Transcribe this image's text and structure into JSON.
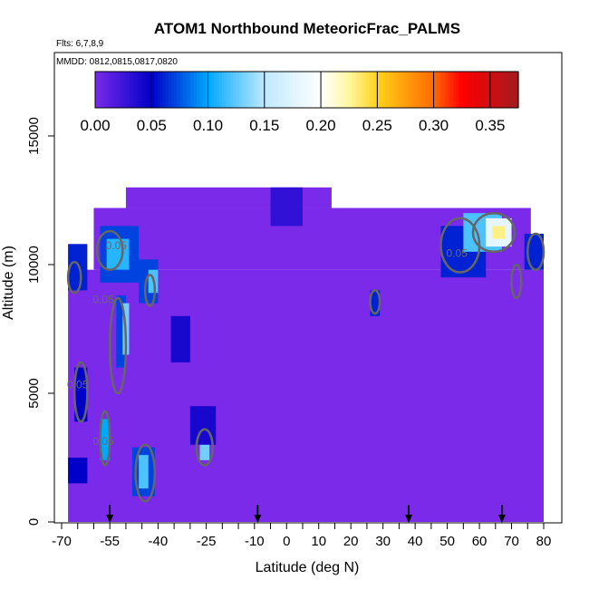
{
  "chart_data": {
    "type": "heatmap",
    "title": "ATOM1 Northbound MeteoricFrac_PALMS",
    "flights_note": "Flts: 6,7,8,9",
    "dates_note": "MMDD: 0812,0815,0817,0820",
    "xlabel": "Latitude (deg N)",
    "ylabel": "Altitude (m)",
    "xlim": [
      -70,
      80
    ],
    "ylim": [
      0,
      17000
    ],
    "x_ticks": [
      "-70",
      "-55",
      "-40",
      "-25",
      "-10",
      "0",
      "10",
      "20",
      "30",
      "40",
      "50",
      "60",
      "70",
      "80"
    ],
    "x_tick_values": [
      -70,
      -55,
      -40,
      -25,
      -10,
      0,
      10,
      20,
      30,
      40,
      50,
      60,
      70,
      80
    ],
    "y_ticks": [
      "0",
      "5000",
      "10000",
      "15000"
    ],
    "y_tick_values": [
      0,
      5000,
      10000,
      15000
    ],
    "colorbar": {
      "ticks": [
        "0.00",
        "0.05",
        "0.10",
        "0.15",
        "0.20",
        "0.25",
        "0.30",
        "0.35"
      ],
      "tick_values": [
        0,
        0.05,
        0.1,
        0.15,
        0.2,
        0.25,
        0.3,
        0.35
      ],
      "range": [
        0,
        0.375
      ],
      "stops": [
        {
          "v": 0.0,
          "color": "#7a2ae8"
        },
        {
          "v": 0.05,
          "color": "#0000c8"
        },
        {
          "v": 0.1,
          "color": "#00a8ff"
        },
        {
          "v": 0.15,
          "color": "#bfe8ff"
        },
        {
          "v": 0.2,
          "color": "#ffffff"
        },
        {
          "v": 0.225,
          "color": "#fff7a0"
        },
        {
          "v": 0.25,
          "color": "#ffd21a"
        },
        {
          "v": 0.3,
          "color": "#ff6a00"
        },
        {
          "v": 0.325,
          "color": "#ff0000"
        },
        {
          "v": 0.375,
          "color": "#a01c20"
        }
      ]
    },
    "background_value": 0.0,
    "coverage": [
      {
        "lat": [
          -68,
          80
        ],
        "alt": [
          0,
          9800
        ]
      },
      {
        "lat": [
          -60,
          76
        ],
        "alt": [
          9800,
          12200
        ]
      },
      {
        "lat": [
          -50,
          14
        ],
        "alt": [
          12200,
          13000
        ]
      }
    ],
    "patches": [
      {
        "lat": [
          -58,
          -46
        ],
        "alt": [
          9300,
          11500
        ],
        "value": 0.07
      },
      {
        "lat": [
          -56,
          -49
        ],
        "alt": [
          9800,
          11000
        ],
        "value": 0.11
      },
      {
        "lat": [
          -68,
          -62
        ],
        "alt": [
          9000,
          10800
        ],
        "value": 0.06
      },
      {
        "lat": [
          -53,
          -50
        ],
        "alt": [
          6000,
          8800
        ],
        "value": 0.07
      },
      {
        "lat": [
          -51,
          -49
        ],
        "alt": [
          6500,
          8500
        ],
        "value": 0.13
      },
      {
        "lat": [
          -46,
          -40
        ],
        "alt": [
          8500,
          10200
        ],
        "value": 0.07
      },
      {
        "lat": [
          -43,
          -40
        ],
        "alt": [
          8900,
          9800
        ],
        "value": 0.12
      },
      {
        "lat": [
          -66,
          -62
        ],
        "alt": [
          3900,
          6000
        ],
        "value": 0.05
      },
      {
        "lat": [
          -58,
          -55
        ],
        "alt": [
          2400,
          4000
        ],
        "value": 0.1
      },
      {
        "lat": [
          -68,
          -62
        ],
        "alt": [
          1500,
          2500
        ],
        "value": 0.05
      },
      {
        "lat": [
          -48,
          -41
        ],
        "alt": [
          1000,
          2900
        ],
        "value": 0.07
      },
      {
        "lat": [
          -46,
          -43
        ],
        "alt": [
          1300,
          2600
        ],
        "value": 0.12
      },
      {
        "lat": [
          -27,
          -24
        ],
        "alt": [
          2400,
          3500
        ],
        "value": 0.13
      },
      {
        "lat": [
          -30,
          -22
        ],
        "alt": [
          3000,
          4500
        ],
        "value": 0.04
      },
      {
        "lat": [
          -36,
          -30
        ],
        "alt": [
          6200,
          8000
        ],
        "value": 0.04
      },
      {
        "lat": [
          26,
          29
        ],
        "alt": [
          8000,
          9000
        ],
        "value": 0.06
      },
      {
        "lat": [
          48,
          62
        ],
        "alt": [
          9500,
          11500
        ],
        "value": 0.06
      },
      {
        "lat": [
          55,
          67
        ],
        "alt": [
          10500,
          12000
        ],
        "value": 0.12
      },
      {
        "lat": [
          62,
          70
        ],
        "alt": [
          10700,
          11800
        ],
        "value": 0.18
      },
      {
        "lat": [
          64,
          68
        ],
        "alt": [
          11000,
          11500
        ],
        "value": 0.23
      },
      {
        "lat": [
          74,
          80
        ],
        "alt": [
          9800,
          11200
        ],
        "value": 0.06
      },
      {
        "lat": [
          -5,
          5
        ],
        "alt": [
          11500,
          13000
        ],
        "value": 0.03
      }
    ],
    "contours": [
      {
        "level": "0.05",
        "lat": [
          -59,
          -51
        ],
        "alt": [
          9800,
          11300
        ]
      },
      {
        "level": "0.05",
        "lat": [
          -68,
          -64
        ],
        "alt": [
          8900,
          10100
        ]
      },
      {
        "level": "0.05",
        "lat": [
          -44,
          -41
        ],
        "alt": [
          8400,
          9600
        ]
      },
      {
        "level": "0.05",
        "lat": [
          -55,
          -50
        ],
        "alt": [
          5000,
          8700
        ]
      },
      {
        "level": "0.05",
        "lat": [
          -66,
          -62
        ],
        "alt": [
          3900,
          6200
        ]
      },
      {
        "level": "0.05",
        "lat": [
          -58,
          -55
        ],
        "alt": [
          2200,
          4300
        ]
      },
      {
        "level": "0.05",
        "lat": [
          -47,
          -41
        ],
        "alt": [
          800,
          3000
        ]
      },
      {
        "level": "0.05",
        "lat": [
          -28,
          -23
        ],
        "alt": [
          2200,
          3600
        ]
      },
      {
        "level": "0.05",
        "lat": [
          26,
          29
        ],
        "alt": [
          8100,
          9000
        ]
      },
      {
        "level": "0.05",
        "lat": [
          48,
          60
        ],
        "alt": [
          9700,
          11800
        ]
      },
      {
        "level": "0.05",
        "lat": [
          58,
          71
        ],
        "alt": [
          10500,
          12000
        ]
      },
      {
        "level": "0.05",
        "lat": [
          70,
          73
        ],
        "alt": [
          8700,
          10000
        ]
      },
      {
        "level": "0.05",
        "lat": [
          75,
          80
        ],
        "alt": [
          9800,
          11200
        ]
      }
    ],
    "contour_labels": [
      {
        "text": "0.05",
        "lat": -53,
        "alt": 10600
      },
      {
        "text": "0.05",
        "lat": 53,
        "alt": 10300
      },
      {
        "text": "0.05",
        "lat": -57,
        "alt": 8500
      },
      {
        "text": "0.05",
        "lat": -65,
        "alt": 5200
      },
      {
        "text": "0.05",
        "lat": -57,
        "alt": 3000
      }
    ],
    "arrow_markers_lat": [
      -55,
      -9,
      38,
      67
    ]
  }
}
